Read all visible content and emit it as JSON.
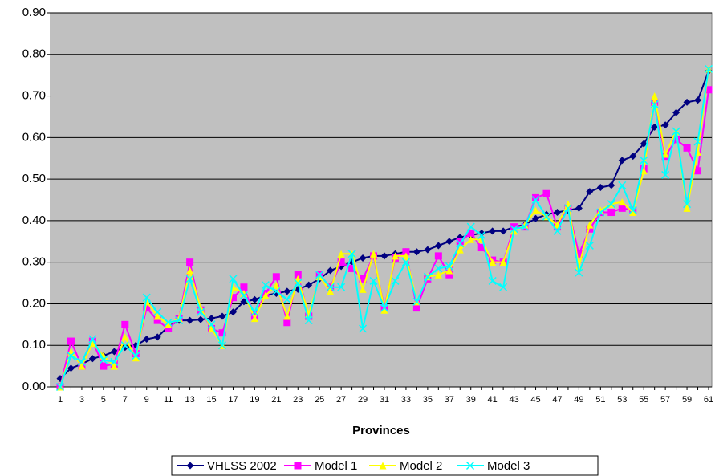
{
  "chart_data": {
    "type": "line",
    "x_label": "Provinces",
    "categories": [
      1,
      null,
      3,
      null,
      5,
      null,
      7,
      null,
      9,
      null,
      11,
      null,
      13,
      null,
      15,
      null,
      17,
      null,
      19,
      null,
      21,
      null,
      23,
      null,
      25,
      null,
      27,
      null,
      29,
      null,
      31,
      null,
      33,
      null,
      35,
      null,
      37,
      null,
      39,
      null,
      41,
      null,
      43,
      null,
      45,
      null,
      47,
      null,
      49,
      null,
      51,
      null,
      53,
      null,
      55,
      null,
      57,
      null,
      59,
      null,
      61
    ],
    "ylim": [
      0,
      0.9
    ],
    "yticks": [
      {
        "value": 0,
        "label": "0.00"
      },
      {
        "value": 0.1,
        "label": "0.10"
      },
      {
        "value": 0.2,
        "label": "0.20"
      },
      {
        "value": 0.3,
        "label": "0.30"
      },
      {
        "value": 0.4,
        "label": "0.40"
      },
      {
        "value": 0.5,
        "label": "0.50"
      },
      {
        "value": 0.6,
        "label": "0.60"
      },
      {
        "value": 0.7,
        "label": "0.70"
      },
      {
        "value": 0.8,
        "label": "0.80"
      },
      {
        "value": 0.9,
        "label": "0.90"
      }
    ],
    "grid": true,
    "series": [
      {
        "name": "VHLSS 2002",
        "color": "#000080",
        "marker": "diamond",
        "values": [
          0.02,
          0.045,
          0.055,
          0.068,
          0.075,
          0.085,
          0.095,
          0.1,
          0.115,
          0.12,
          0.145,
          0.16,
          0.16,
          0.162,
          0.165,
          0.17,
          0.18,
          0.205,
          0.21,
          0.22,
          0.225,
          0.23,
          0.235,
          0.245,
          0.26,
          0.28,
          0.29,
          0.3,
          0.31,
          0.315,
          0.315,
          0.32,
          0.325,
          0.325,
          0.33,
          0.34,
          0.35,
          0.36,
          0.365,
          0.37,
          0.375,
          0.375,
          0.385,
          0.39,
          0.405,
          0.415,
          0.42,
          0.425,
          0.43,
          0.47,
          0.48,
          0.485,
          0.545,
          0.555,
          0.585,
          0.625,
          0.63,
          0.66,
          0.685,
          0.69,
          0.76
        ]
      },
      {
        "name": "Model 1",
        "color": "#FF00FF",
        "marker": "square",
        "values": [
          0.0,
          0.11,
          0.05,
          0.11,
          0.05,
          0.055,
          0.15,
          0.08,
          0.19,
          0.16,
          0.14,
          0.165,
          0.3,
          0.185,
          0.14,
          0.13,
          0.215,
          0.24,
          0.17,
          0.225,
          0.265,
          0.155,
          0.27,
          0.17,
          0.27,
          0.24,
          0.3,
          0.285,
          0.26,
          0.315,
          0.19,
          0.31,
          0.325,
          0.19,
          0.26,
          0.315,
          0.27,
          0.35,
          0.37,
          0.335,
          0.305,
          0.3,
          0.385,
          0.385,
          0.455,
          0.465,
          0.385,
          0.43,
          0.32,
          0.38,
          0.42,
          0.42,
          0.43,
          0.425,
          0.525,
          0.685,
          0.555,
          0.595,
          0.575,
          0.52,
          0.715
        ]
      },
      {
        "name": "Model 2",
        "color": "#FFFF00",
        "marker": "triangle",
        "values": [
          0.0,
          0.085,
          0.05,
          0.105,
          0.075,
          0.05,
          0.12,
          0.07,
          0.205,
          0.17,
          0.15,
          0.165,
          0.28,
          0.19,
          0.14,
          0.1,
          0.24,
          0.225,
          0.165,
          0.22,
          0.245,
          0.17,
          0.26,
          0.175,
          0.265,
          0.23,
          0.32,
          0.32,
          0.235,
          0.32,
          0.185,
          0.315,
          0.315,
          0.205,
          0.265,
          0.27,
          0.28,
          0.33,
          0.355,
          0.355,
          0.3,
          0.3,
          0.375,
          0.39,
          0.425,
          0.41,
          0.39,
          0.44,
          0.29,
          0.39,
          0.425,
          0.44,
          0.445,
          0.42,
          0.52,
          0.7,
          0.56,
          0.615,
          0.43,
          0.565,
          0.765
        ]
      },
      {
        "name": "Model 3",
        "color": "#00FFFF",
        "marker": "x",
        "values": [
          0.0,
          0.075,
          0.06,
          0.115,
          0.065,
          0.06,
          0.1,
          0.075,
          0.215,
          0.18,
          0.155,
          0.16,
          0.26,
          0.18,
          0.15,
          0.1,
          0.26,
          0.22,
          0.18,
          0.245,
          0.23,
          0.21,
          0.25,
          0.16,
          0.27,
          0.24,
          0.24,
          0.32,
          0.14,
          0.255,
          0.19,
          0.255,
          0.3,
          0.205,
          0.265,
          0.285,
          0.29,
          0.345,
          0.385,
          0.365,
          0.255,
          0.24,
          0.38,
          0.385,
          0.45,
          0.41,
          0.375,
          0.43,
          0.275,
          0.34,
          0.42,
          0.44,
          0.485,
          0.425,
          0.545,
          0.68,
          0.51,
          0.615,
          0.44,
          0.59,
          0.765
        ]
      }
    ]
  }
}
